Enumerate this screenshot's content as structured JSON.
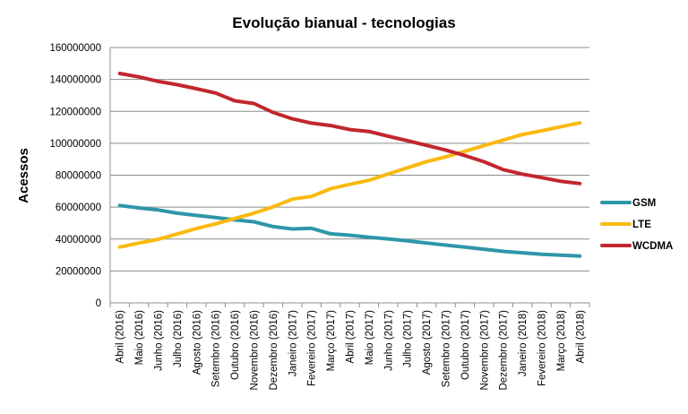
{
  "chart_data": {
    "type": "line",
    "title": "Evolução bianual - tecnologias",
    "xlabel": "",
    "ylabel": "Acessos",
    "ylim": [
      0,
      160000000
    ],
    "yticks": [
      0,
      20000000,
      40000000,
      60000000,
      80000000,
      100000000,
      120000000,
      140000000,
      160000000
    ],
    "ytick_labels": [
      "0",
      "20000000",
      "40000000",
      "60000000",
      "80000000",
      "100000000",
      "120000000",
      "140000000",
      "160000000"
    ],
    "grid": "horizontal",
    "legend_position": "right",
    "categories": [
      "Abril (2016)",
      "Maio (2016)",
      "Junho (2016)",
      "Julho (2016)",
      "Agosto (2016)",
      "Setembro (2016)",
      "Outubro (2016)",
      "Novembro (2016)",
      "Dezembro (2016)",
      "Janeiro (2017)",
      "Fevereiro (2017)",
      "Março (2017)",
      "Abril (2017)",
      "Maio (2017)",
      "Junho (2017)",
      "Julho (2017)",
      "Agosto (2017)",
      "Setembro (2017)",
      "Outubro (2017)",
      "Novembro (2017)",
      "Dezembro (2017)",
      "Janeiro (2018)",
      "Fevereiro (2018)",
      "Março (2018)",
      "Abril (2018)"
    ],
    "series": [
      {
        "name": "GSM",
        "color": "#2e96a8",
        "values": [
          61000000,
          59500000,
          58200000,
          56200000,
          54800000,
          53500000,
          52000000,
          50800000,
          47800000,
          46300000,
          46700000,
          43300000,
          42400000,
          41100000,
          40100000,
          38900000,
          37500000,
          36200000,
          34900000,
          33600000,
          32300000,
          31400000,
          30500000,
          29900000,
          29300000
        ]
      },
      {
        "name": "LTE",
        "color": "#f9b90f",
        "values": [
          35000000,
          37500000,
          39800000,
          43200000,
          46600000,
          49500000,
          52900000,
          56200000,
          60200000,
          65000000,
          66700000,
          71500000,
          74300000,
          76800000,
          80800000,
          84600000,
          88500000,
          91500000,
          95000000,
          98500000,
          102000000,
          105500000,
          107800000,
          110400000,
          112800000
        ]
      },
      {
        "name": "WCDMA",
        "color": "#c1272d",
        "values": [
          143700000,
          141600000,
          138800000,
          136700000,
          134200000,
          131500000,
          126600000,
          124900000,
          119300000,
          115300000,
          112600000,
          111100000,
          108600000,
          107400000,
          104400000,
          101600000,
          98700000,
          95800000,
          92300000,
          88400000,
          83500000,
          80700000,
          78500000,
          76200000,
          74800000
        ]
      }
    ]
  }
}
